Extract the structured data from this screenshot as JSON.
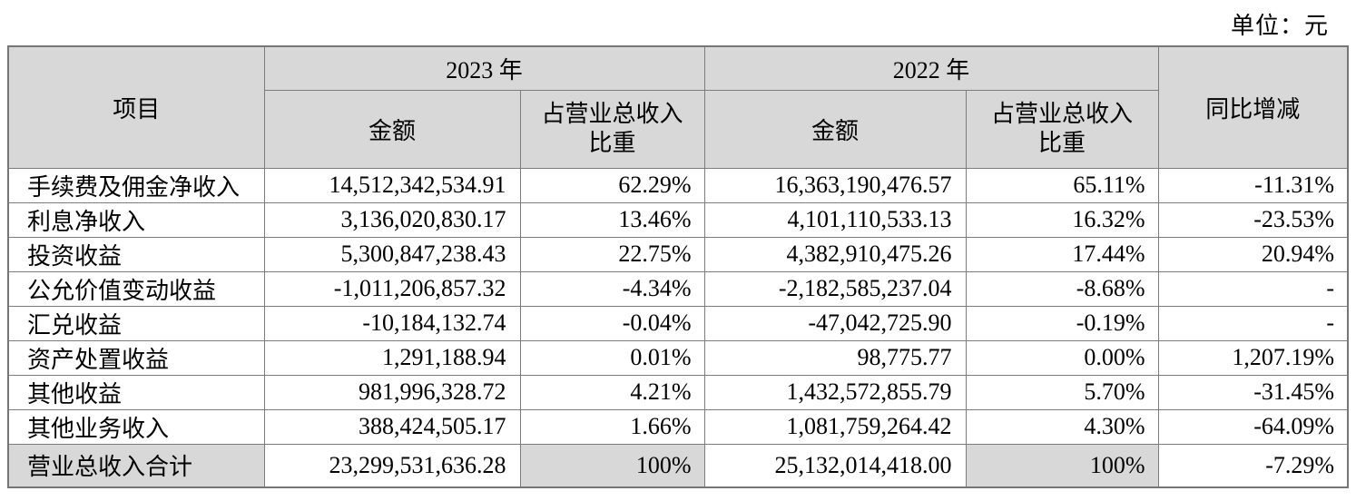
{
  "unit_label": "单位：元",
  "colors": {
    "header_bg": "#d8d8d8",
    "border": "#7c7c7c",
    "text": "#000000",
    "page_bg": "#ffffff"
  },
  "table": {
    "headers": {
      "item": "项目",
      "year_2023": "2023 年",
      "year_2022": "2022 年",
      "amount": "金额",
      "ratio": "占营业总收入比重",
      "yoy": "同比增减"
    },
    "rows": [
      {
        "item": "手续费及佣金净收入",
        "amount_2023": "14,512,342,534.91",
        "ratio_2023": "62.29%",
        "amount_2022": "16,363,190,476.57",
        "ratio_2022": "65.11%",
        "yoy": "-11.31%"
      },
      {
        "item": "利息净收入",
        "amount_2023": "3,136,020,830.17",
        "ratio_2023": "13.46%",
        "amount_2022": "4,101,110,533.13",
        "ratio_2022": "16.32%",
        "yoy": "-23.53%"
      },
      {
        "item": "投资收益",
        "amount_2023": "5,300,847,238.43",
        "ratio_2023": "22.75%",
        "amount_2022": "4,382,910,475.26",
        "ratio_2022": "17.44%",
        "yoy": "20.94%"
      },
      {
        "item": "公允价值变动收益",
        "amount_2023": "-1,011,206,857.32",
        "ratio_2023": "-4.34%",
        "amount_2022": "-2,182,585,237.04",
        "ratio_2022": "-8.68%",
        "yoy": "-"
      },
      {
        "item": "汇兑收益",
        "amount_2023": "-10,184,132.74",
        "ratio_2023": "-0.04%",
        "amount_2022": "-47,042,725.90",
        "ratio_2022": "-0.19%",
        "yoy": "-"
      },
      {
        "item": "资产处置收益",
        "amount_2023": "1,291,188.94",
        "ratio_2023": "0.01%",
        "amount_2022": "98,775.77",
        "ratio_2022": "0.00%",
        "yoy": "1,207.19%"
      },
      {
        "item": "其他收益",
        "amount_2023": "981,996,328.72",
        "ratio_2023": "4.21%",
        "amount_2022": "1,432,572,855.79",
        "ratio_2022": "5.70%",
        "yoy": "-31.45%"
      },
      {
        "item": "其他业务收入",
        "amount_2023": "388,424,505.17",
        "ratio_2023": "1.66%",
        "amount_2022": "1,081,759,264.42",
        "ratio_2022": "4.30%",
        "yoy": "-64.09%"
      }
    ],
    "total": {
      "item": "营业总收入合计",
      "amount_2023": "23,299,531,636.28",
      "ratio_2023": "100%",
      "amount_2022": "25,132,014,418.00",
      "ratio_2022": "100%",
      "yoy": "-7.29%"
    }
  }
}
